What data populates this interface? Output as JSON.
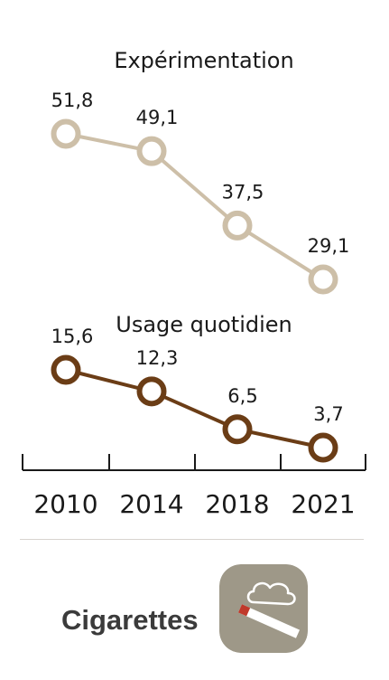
{
  "chart_data": {
    "type": "line",
    "categories": [
      "2010",
      "2014",
      "2018",
      "2021"
    ],
    "series": [
      {
        "name": "Expérimentation",
        "values": [
          51.8,
          49.1,
          37.5,
          29.1
        ],
        "labels": [
          "51,8",
          "49,1",
          "37,5",
          "29,1"
        ],
        "color": "#cdbfa8"
      },
      {
        "name": "Usage quotidien",
        "values": [
          15.6,
          12.3,
          6.5,
          3.7
        ],
        "labels": [
          "15,6",
          "12,3",
          "6,5",
          "3,7"
        ],
        "color": "#6b3d16"
      }
    ]
  },
  "footer": {
    "category": "Cigarettes",
    "icon": "cigarette-icon",
    "icon_background": "#9e9888"
  }
}
